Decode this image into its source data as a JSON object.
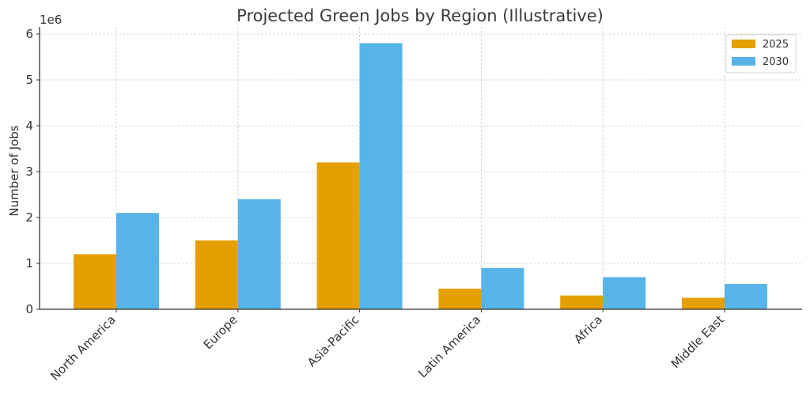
{
  "chart_data": {
    "type": "bar",
    "title": "Projected Green Jobs by Region (Illustrative)",
    "xlabel": "",
    "ylabel": "Number of Jobs",
    "y_offset_label": "1e6",
    "ylim": [
      0,
      6000000
    ],
    "yticks": [
      0,
      1,
      2,
      3,
      4,
      5,
      6
    ],
    "grid": true,
    "legend_position": "upper right",
    "categories": [
      "North America",
      "Europe",
      "Asia-Pacific",
      "Latin America",
      "Africa",
      "Middle East"
    ],
    "series": [
      {
        "name": "2025",
        "color": "#E69F00",
        "values": [
          1200000,
          1500000,
          3200000,
          450000,
          300000,
          250000
        ]
      },
      {
        "name": "2030",
        "color": "#56B4E9",
        "values": [
          2100000,
          2400000,
          5800000,
          900000,
          700000,
          550000
        ]
      }
    ]
  }
}
